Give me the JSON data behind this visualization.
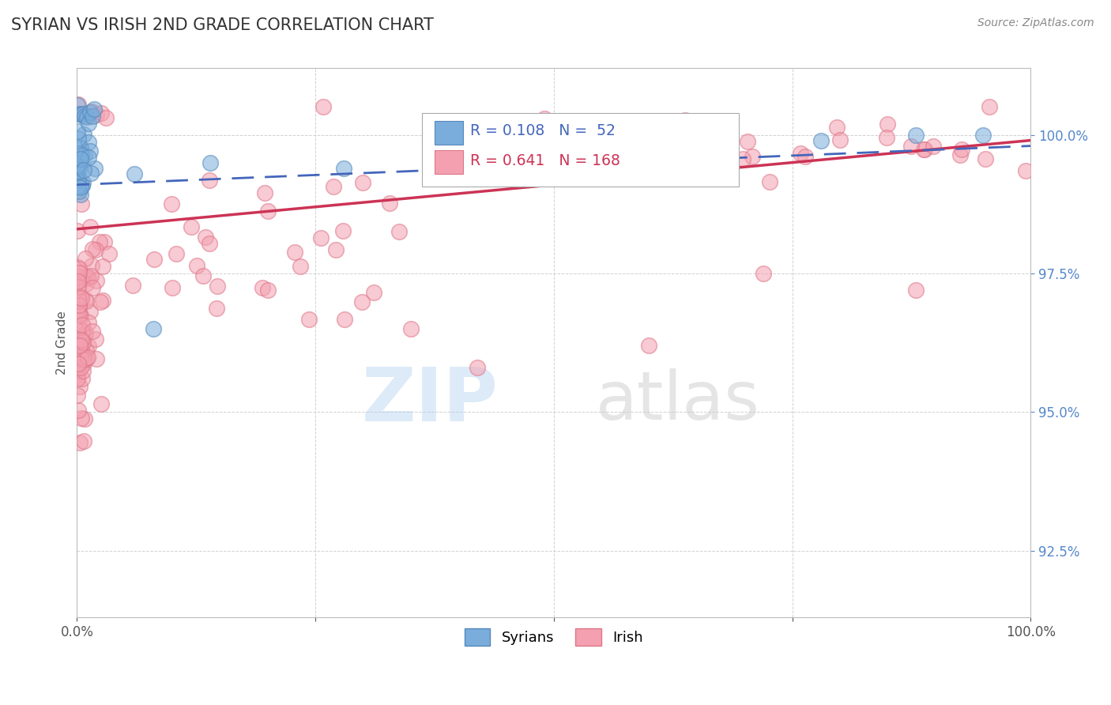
{
  "title": "SYRIAN VS IRISH 2ND GRADE CORRELATION CHART",
  "source": "Source: ZipAtlas.com",
  "ylabel": "2nd Grade",
  "xlim": [
    0.0,
    100.0
  ],
  "ylim": [
    91.3,
    101.2
  ],
  "yticks": [
    92.5,
    95.0,
    97.5,
    100.0
  ],
  "ytick_labels": [
    "92.5%",
    "95.0%",
    "97.5%",
    "100.0%"
  ],
  "syrians_color": "#7aaddc",
  "syrians_edge": "#5588bb",
  "irish_color": "#f4a0b0",
  "irish_edge": "#dd7788",
  "syrians_line_color": "#4466bb",
  "irish_line_color": "#cc3355",
  "legend_R1": "R = 0.108",
  "legend_N1": "N =  52",
  "legend_R2": "R = 0.641",
  "legend_N2": "N = 168",
  "legend_label1": "Syrians",
  "legend_label2": "Irish",
  "background_color": "#ffffff",
  "title_color": "#333333",
  "source_color": "#888888",
  "grid_color": "#cccccc",
  "ytick_color": "#5588cc",
  "xtick_color": "#555555"
}
